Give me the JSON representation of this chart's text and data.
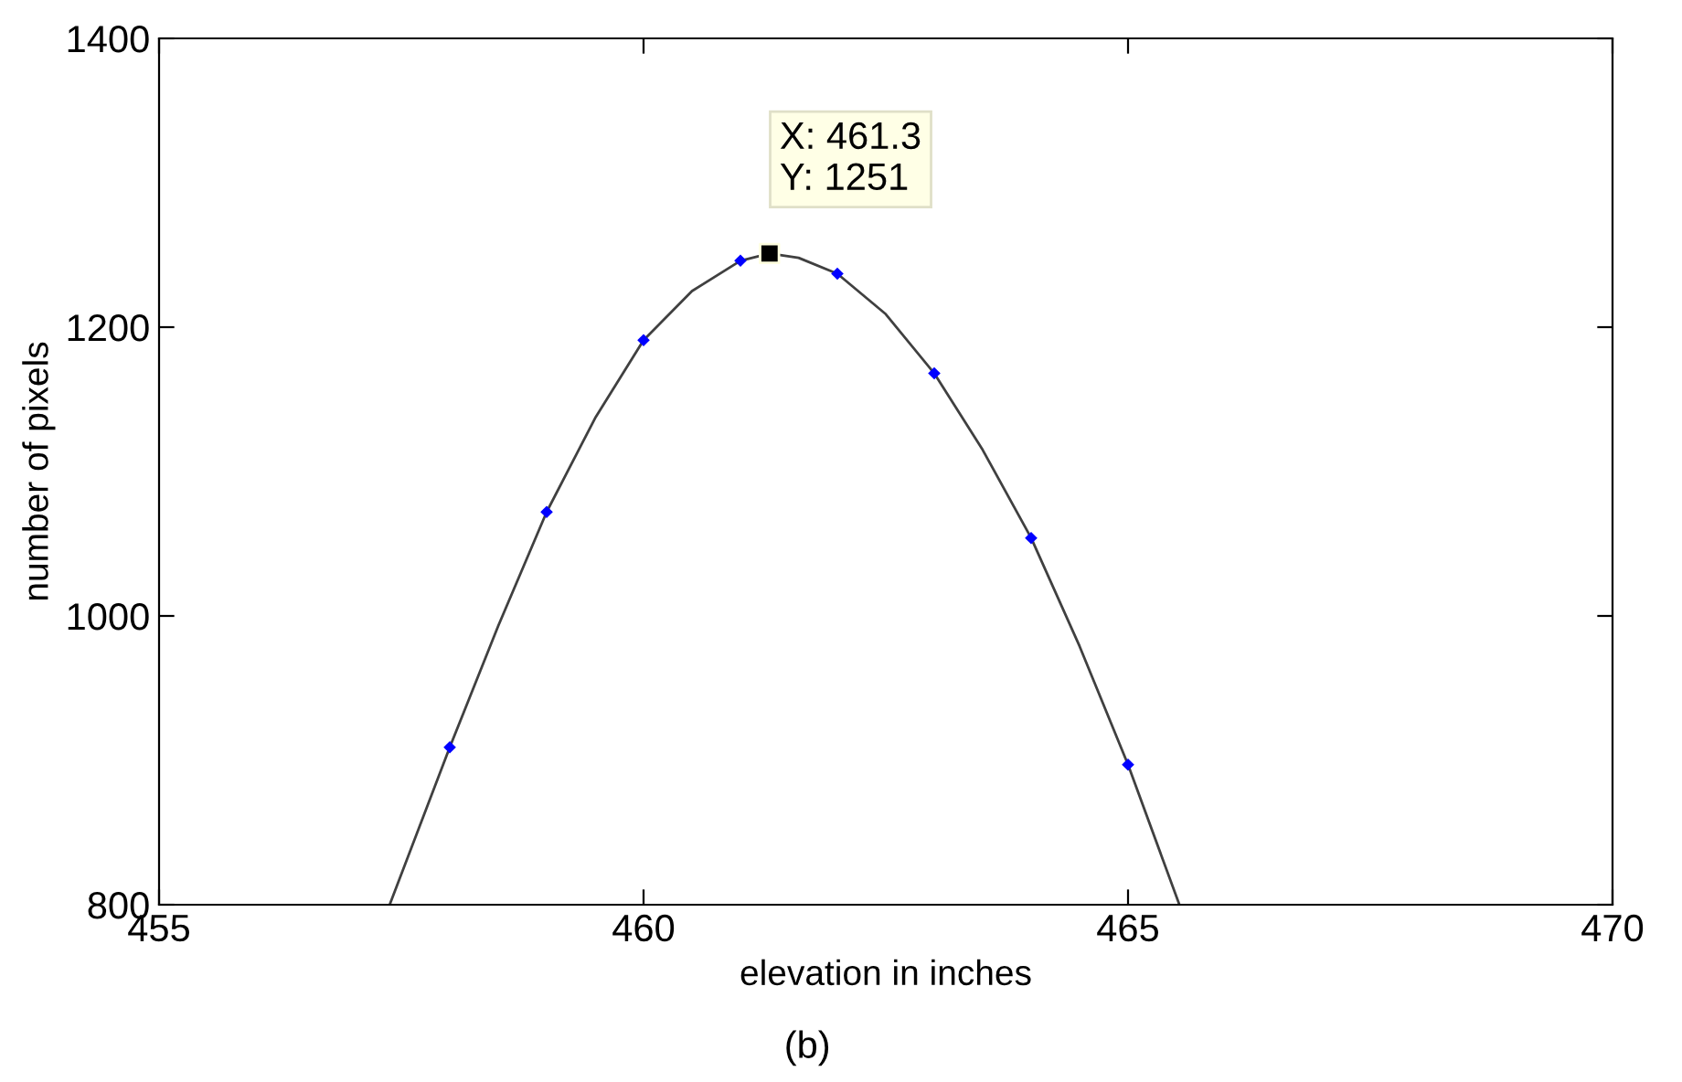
{
  "chart_data": {
    "type": "line",
    "xlabel": "elevation in inches",
    "ylabel": "number of pixels",
    "xlim": [
      455,
      470
    ],
    "xticks": [
      455,
      460,
      465,
      470
    ],
    "ylim": [
      800,
      1400
    ],
    "yticks": [
      800,
      1000,
      1200,
      1400
    ],
    "grid": false,
    "series": [
      {
        "color": "#404040",
        "marker": "none",
        "line_style": "solid",
        "x": [
          457.38,
          458,
          458.5,
          459,
          459.5,
          460,
          460.5,
          461,
          461.3,
          461.6,
          462,
          462.5,
          463,
          463.5,
          464,
          464.5,
          465,
          465.53
        ],
        "values": [
          800,
          909,
          993,
          1072,
          1137,
          1191,
          1225,
          1246,
          1251,
          1248,
          1237,
          1209,
          1168,
          1115,
          1054,
          979,
          897,
          800
        ]
      },
      {
        "type": "scatter",
        "color": "#0000ff",
        "marker": "diamond",
        "x": [
          458,
          459,
          460,
          461,
          462,
          463,
          464,
          465
        ],
        "values": [
          909,
          1072,
          1191,
          1246,
          1237,
          1168,
          1054,
          897
        ]
      },
      {
        "type": "scatter",
        "color": "#000000",
        "marker": "square",
        "x": [
          461.3
        ],
        "values": [
          1251
        ]
      }
    ],
    "annotations": [
      {
        "text": "X: 461.3\nY: 1251",
        "x": 461.3,
        "y": 1251
      },
      "(b)"
    ]
  }
}
